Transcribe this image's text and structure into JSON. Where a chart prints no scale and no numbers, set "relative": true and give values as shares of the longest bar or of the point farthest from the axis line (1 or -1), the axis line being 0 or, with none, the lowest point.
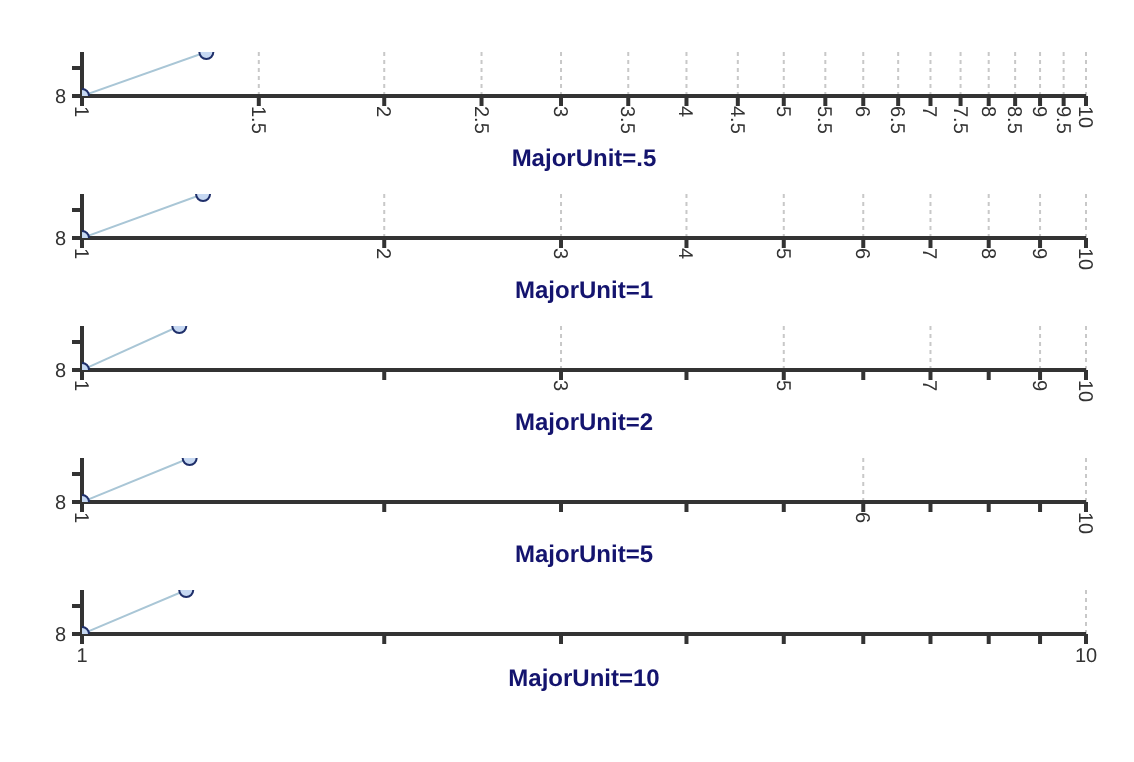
{
  "chart_data": [
    {
      "type": "line",
      "xlabel": "MajorUnit=.5",
      "annotations": [
        "8"
      ],
      "relative": true,
      "log": "x",
      "x": [
        1,
        1.33
      ],
      "series": [
        {
          "color": "#a9c6d6",
          "values": [
            0,
            1
          ]
        }
      ],
      "xlim": [
        1,
        10
      ],
      "xticks": [
        1,
        1.5,
        2,
        2.5,
        3,
        3.5,
        4,
        4.5,
        5,
        5.5,
        6,
        6.5,
        7,
        7.5,
        8,
        8.5,
        9,
        9.5,
        10
      ],
      "grid": "x",
      "marker": "circle"
    },
    {
      "type": "line",
      "xlabel": "MajorUnit=1",
      "annotations": [
        "8"
      ],
      "relative": true,
      "log": "x",
      "x": [
        1,
        1.32
      ],
      "series": [
        {
          "color": "#a9c6d6",
          "values": [
            0,
            1
          ]
        }
      ],
      "xlim": [
        1,
        10
      ],
      "xticks": [
        1,
        2,
        3,
        4,
        5,
        6,
        7,
        8,
        9,
        10
      ],
      "grid": "x",
      "marker": "circle"
    },
    {
      "type": "line",
      "xlabel": "MajorUnit=2",
      "annotations": [
        "8"
      ],
      "relative": true,
      "log": "x",
      "x": [
        1,
        1.25
      ],
      "series": [
        {
          "color": "#a9c6d6",
          "values": [
            0,
            1
          ]
        }
      ],
      "xlim": [
        1,
        10
      ],
      "xticks": [
        1,
        {
          "value": 2,
          "label": null
        },
        3,
        {
          "value": 4,
          "label": null
        },
        5,
        {
          "value": 6,
          "label": null
        },
        7,
        {
          "value": 8,
          "label": null
        },
        9,
        10
      ],
      "grid": "x",
      "marker": "circle"
    },
    {
      "type": "line",
      "xlabel": "MajorUnit=5",
      "annotations": [
        "8"
      ],
      "relative": true,
      "log": "x",
      "x": [
        1,
        1.28
      ],
      "series": [
        {
          "color": "#a9c6d6",
          "values": [
            0,
            1
          ]
        }
      ],
      "xlim": [
        1,
        10
      ],
      "xticks": [
        1,
        {
          "value": 2,
          "label": null
        },
        {
          "value": 3,
          "label": null
        },
        {
          "value": 4,
          "label": null
        },
        {
          "value": 5,
          "label": null
        },
        6,
        {
          "value": 7,
          "label": null
        },
        {
          "value": 8,
          "label": null
        },
        {
          "value": 9,
          "label": null
        },
        10
      ],
      "grid": "x",
      "marker": "circle"
    },
    {
      "type": "line",
      "xlabel": "MajorUnit=10",
      "annotations": [
        "8"
      ],
      "relative": true,
      "log": "x",
      "x": [
        1,
        1.27
      ],
      "series": [
        {
          "color": "#a9c6d6",
          "values": [
            0,
            1
          ]
        }
      ],
      "xlim": [
        1,
        10
      ],
      "xticks": [
        1,
        {
          "value": 2,
          "label": null
        },
        {
          "value": 3,
          "label": null
        },
        {
          "value": 4,
          "label": null
        },
        {
          "value": 5,
          "label": null
        },
        {
          "value": 6,
          "label": null
        },
        {
          "value": 7,
          "label": null
        },
        {
          "value": 8,
          "label": null
        },
        {
          "value": 9,
          "label": null
        },
        10
      ],
      "grid": "x",
      "marker": "circle"
    }
  ]
}
